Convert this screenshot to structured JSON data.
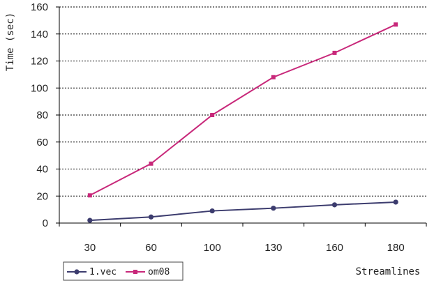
{
  "chart_data": {
    "type": "line",
    "title": "",
    "xlabel": "Streamlines",
    "ylabel": "Time (sec)",
    "categories": [
      "30",
      "60",
      "100",
      "130",
      "160",
      "180"
    ],
    "ylim": [
      0,
      160
    ],
    "yticks": [
      0,
      20,
      40,
      60,
      80,
      100,
      120,
      140,
      160
    ],
    "grid": "horizontal dotted",
    "legend": "bottom-left",
    "series": [
      {
        "name": "1.vec",
        "color": "#3c3c6e",
        "marker": "diamond",
        "values": [
          2,
          4.5,
          9,
          11,
          13.5,
          15.5
        ]
      },
      {
        "name": "om08",
        "color": "#c8287a",
        "marker": "square",
        "values": [
          20.5,
          44,
          80,
          108,
          126,
          147
        ]
      }
    ]
  }
}
